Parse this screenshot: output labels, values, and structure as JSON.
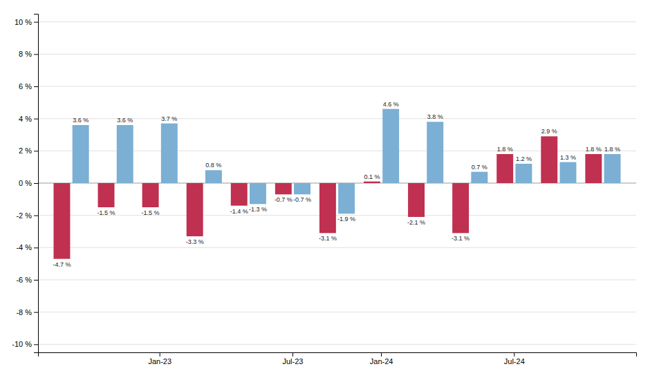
{
  "chart_data": {
    "type": "bar",
    "categories": [
      null,
      null,
      "Jan-23",
      null,
      null,
      "Jul-23",
      null,
      "Jan-24",
      null,
      null,
      "Jul-24",
      null,
      null
    ],
    "series": [
      {
        "color": "#c03050",
        "values": [
          -4.7,
          -1.5,
          -1.5,
          -3.3,
          -1.4,
          -0.7,
          -3.1,
          0.1,
          -2.1,
          -3.1,
          1.8,
          2.9,
          1.8
        ],
        "value_labels": [
          "-4.7 %",
          "-1.5 %",
          "-1.5 %",
          "-3.3 %",
          "-1.4 %",
          "-0.7 %",
          "-3.1 %",
          "0.1 %",
          "-2.1 %",
          "-3.1 %",
          "1.8 %",
          "2.9 %",
          "1.8 %"
        ]
      },
      {
        "color": "#7bafd4",
        "values": [
          3.6,
          3.6,
          3.7,
          0.8,
          -1.3,
          -0.7,
          -1.9,
          4.6,
          3.8,
          0.7,
          1.2,
          1.3,
          1.8
        ],
        "value_labels": [
          "3.6 %",
          "3.6 %",
          "3.7 %",
          "0.8 %",
          "-1.3 %",
          "-0.7 %",
          "-1.9 %",
          "4.6 %",
          "3.8 %",
          "0.7 %",
          "1.2 %",
          "1.3 %",
          "1.8 %"
        ]
      }
    ],
    "ylim": [
      -10.5,
      10.5
    ],
    "yticks": [
      {
        "value": -10,
        "label": "-10 %"
      },
      {
        "value": -8,
        "label": "-8 %"
      },
      {
        "value": -6,
        "label": "-6 %"
      },
      {
        "value": -4,
        "label": "-4 %"
      },
      {
        "value": -2,
        "label": "-2 %"
      },
      {
        "value": 0,
        "label": "0 %"
      },
      {
        "value": 2,
        "label": "2 %"
      },
      {
        "value": 4,
        "label": "4 %"
      },
      {
        "value": 6,
        "label": "6 %"
      },
      {
        "value": 8,
        "label": "8 %"
      },
      {
        "value": 10,
        "label": "10 %"
      }
    ],
    "grid": true,
    "data_labels": true
  }
}
